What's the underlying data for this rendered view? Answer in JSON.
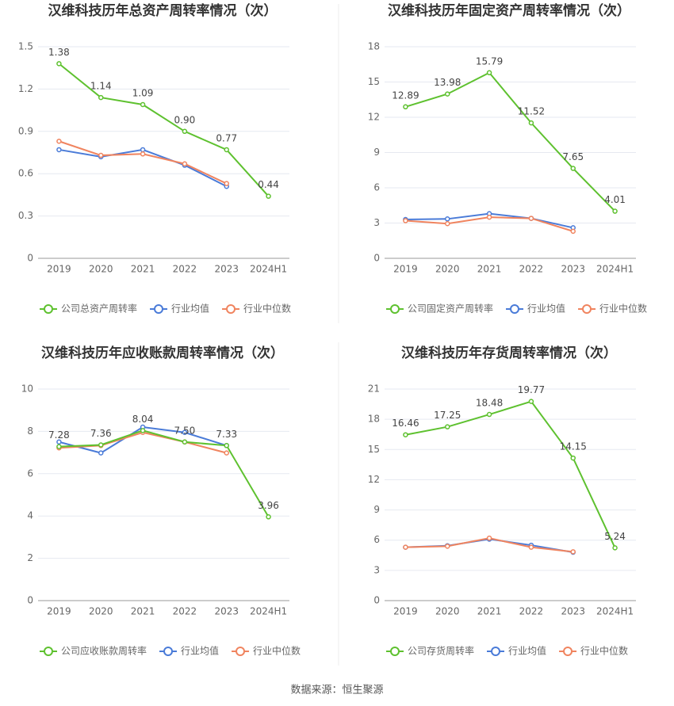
{
  "chart_data": [
    {
      "type": "line",
      "title": "汉维科技历年总资产周转率情况（次）",
      "categories": [
        "2019",
        "2020",
        "2021",
        "2022",
        "2023",
        "2024H1"
      ],
      "ylim": [
        0,
        1.5
      ],
      "yticks": [
        0,
        0.3,
        0.6,
        0.9,
        1.2,
        1.5
      ],
      "grid": true,
      "series": [
        {
          "name": "公司总资产周转率",
          "color": "#5ec12f",
          "values": [
            1.38,
            1.14,
            1.09,
            0.9,
            0.77,
            0.44
          ],
          "value_labels": [
            "1.38",
            "1.14",
            "1.09",
            "0.90",
            "0.77",
            "0.44"
          ]
        },
        {
          "name": "行业均值",
          "color": "#4a7bd8",
          "values": [
            0.77,
            0.72,
            0.77,
            0.66,
            0.51,
            null
          ]
        },
        {
          "name": "行业中位数",
          "color": "#f0845f",
          "values": [
            0.83,
            0.73,
            0.74,
            0.67,
            0.53,
            null
          ]
        }
      ]
    },
    {
      "type": "line",
      "title": "汉维科技历年固定资产周转率情况（次）",
      "categories": [
        "2019",
        "2020",
        "2021",
        "2022",
        "2023",
        "2024H1"
      ],
      "ylim": [
        0,
        18
      ],
      "yticks": [
        0,
        3,
        6,
        9,
        12,
        15,
        18
      ],
      "grid": true,
      "series": [
        {
          "name": "公司固定资产周转率",
          "color": "#5ec12f",
          "values": [
            12.89,
            13.98,
            15.79,
            11.52,
            7.65,
            4.01
          ]
        },
        {
          "name": "行业均值",
          "color": "#4a7bd8",
          "values": [
            3.3,
            3.35,
            3.8,
            3.4,
            2.6,
            null
          ]
        },
        {
          "name": "行业中位数",
          "color": "#f0845f",
          "values": [
            3.2,
            2.95,
            3.5,
            3.4,
            2.3,
            null
          ]
        }
      ]
    },
    {
      "type": "line",
      "title": "汉维科技历年应收账款周转率情况（次）",
      "categories": [
        "2019",
        "2020",
        "2021",
        "2022",
        "2023",
        "2024H1"
      ],
      "ylim": [
        0,
        10
      ],
      "yticks": [
        0,
        2,
        4,
        6,
        8,
        10
      ],
      "grid": true,
      "series": [
        {
          "name": "公司应收账款周转率",
          "color": "#5ec12f",
          "values": [
            7.28,
            7.36,
            8.04,
            7.5,
            7.33,
            3.96
          ],
          "value_labels": [
            "7.28",
            "7.36",
            "8.04",
            "7.50",
            "7.33",
            "3.96"
          ]
        },
        {
          "name": "行业均值",
          "color": "#4a7bd8",
          "values": [
            7.5,
            6.98,
            8.2,
            7.95,
            7.33,
            null
          ]
        },
        {
          "name": "行业中位数",
          "color": "#f0845f",
          "values": [
            7.22,
            7.33,
            7.95,
            7.5,
            6.98,
            null
          ]
        }
      ]
    },
    {
      "type": "line",
      "title": "汉维科技历年存货周转率情况（次）",
      "categories": [
        "2019",
        "2020",
        "2021",
        "2022",
        "2023",
        "2024H1"
      ],
      "ylim": [
        0,
        21
      ],
      "yticks": [
        0,
        3,
        6,
        9,
        12,
        15,
        18,
        21
      ],
      "grid": true,
      "series": [
        {
          "name": "公司存货周转率",
          "color": "#5ec12f",
          "values": [
            16.46,
            17.25,
            18.48,
            19.77,
            14.15,
            5.24
          ]
        },
        {
          "name": "行业均值",
          "color": "#4a7bd8",
          "values": [
            5.3,
            5.45,
            6.1,
            5.5,
            4.8,
            null
          ]
        },
        {
          "name": "行业中位数",
          "color": "#f0845f",
          "values": [
            5.3,
            5.4,
            6.2,
            5.3,
            4.85,
            null
          ]
        }
      ]
    }
  ],
  "source": "数据来源：恒生聚源"
}
